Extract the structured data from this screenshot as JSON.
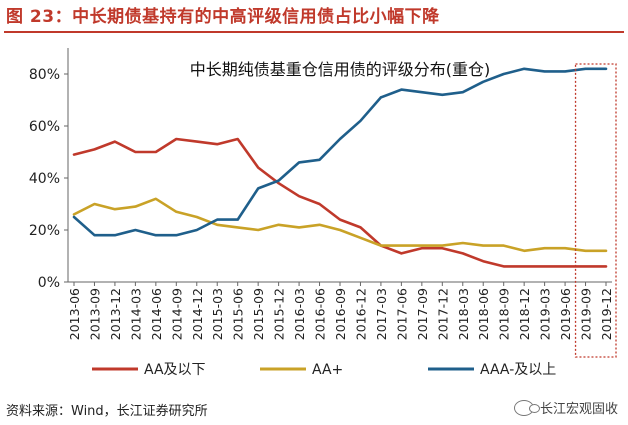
{
  "header": {
    "figure_title": "图 23：中长期债基持有的中高评级信用债占比小幅下降"
  },
  "footer": {
    "source": "资料来源：Wind，长江证券研究所",
    "brand": "长江宏观固收"
  },
  "colors": {
    "aa_below": "#c0392b",
    "aa_plus": "#c9a227",
    "aaa": "#1f5f8b",
    "highlight_box": "#c0392b",
    "accent": "#c0392b"
  },
  "chart_data": {
    "type": "line",
    "title": "中长期纯债基重仓信用债的评级分布(重仓)",
    "x": [
      "2013-06",
      "2013-09",
      "2013-12",
      "2014-03",
      "2014-06",
      "2014-09",
      "2014-12",
      "2015-03",
      "2015-06",
      "2015-09",
      "2015-12",
      "2016-03",
      "2016-06",
      "2016-09",
      "2016-12",
      "2017-03",
      "2017-06",
      "2017-09",
      "2017-12",
      "2018-03",
      "2018-06",
      "2018-09",
      "2018-12",
      "2019-03",
      "2019-06",
      "2019-09",
      "2019-12"
    ],
    "yticks": [
      "0%",
      "20%",
      "40%",
      "60%",
      "80%"
    ],
    "ylim": [
      0,
      0.9
    ],
    "series": [
      {
        "name": "AA及以下",
        "values": [
          0.49,
          0.51,
          0.54,
          0.5,
          0.5,
          0.55,
          0.54,
          0.53,
          0.55,
          0.44,
          0.38,
          0.33,
          0.3,
          0.24,
          0.21,
          0.14,
          0.11,
          0.13,
          0.13,
          0.11,
          0.08,
          0.06,
          0.06,
          0.06,
          0.06,
          0.06,
          0.06
        ]
      },
      {
        "name": "AA+",
        "values": [
          0.26,
          0.3,
          0.28,
          0.29,
          0.32,
          0.27,
          0.25,
          0.22,
          0.21,
          0.2,
          0.22,
          0.21,
          0.22,
          0.2,
          0.17,
          0.14,
          0.14,
          0.14,
          0.14,
          0.15,
          0.14,
          0.14,
          0.12,
          0.13,
          0.13,
          0.12,
          0.12
        ]
      },
      {
        "name": "AAA-及以上",
        "values": [
          0.25,
          0.18,
          0.18,
          0.2,
          0.18,
          0.18,
          0.2,
          0.24,
          0.24,
          0.36,
          0.39,
          0.46,
          0.47,
          0.55,
          0.62,
          0.71,
          0.74,
          0.73,
          0.72,
          0.73,
          0.77,
          0.8,
          0.82,
          0.81,
          0.81,
          0.82,
          0.82
        ]
      }
    ],
    "highlight": {
      "from": "2019-09",
      "to": "2019-12",
      "style": "dotted box"
    },
    "grid": false,
    "legend": "bottom"
  }
}
